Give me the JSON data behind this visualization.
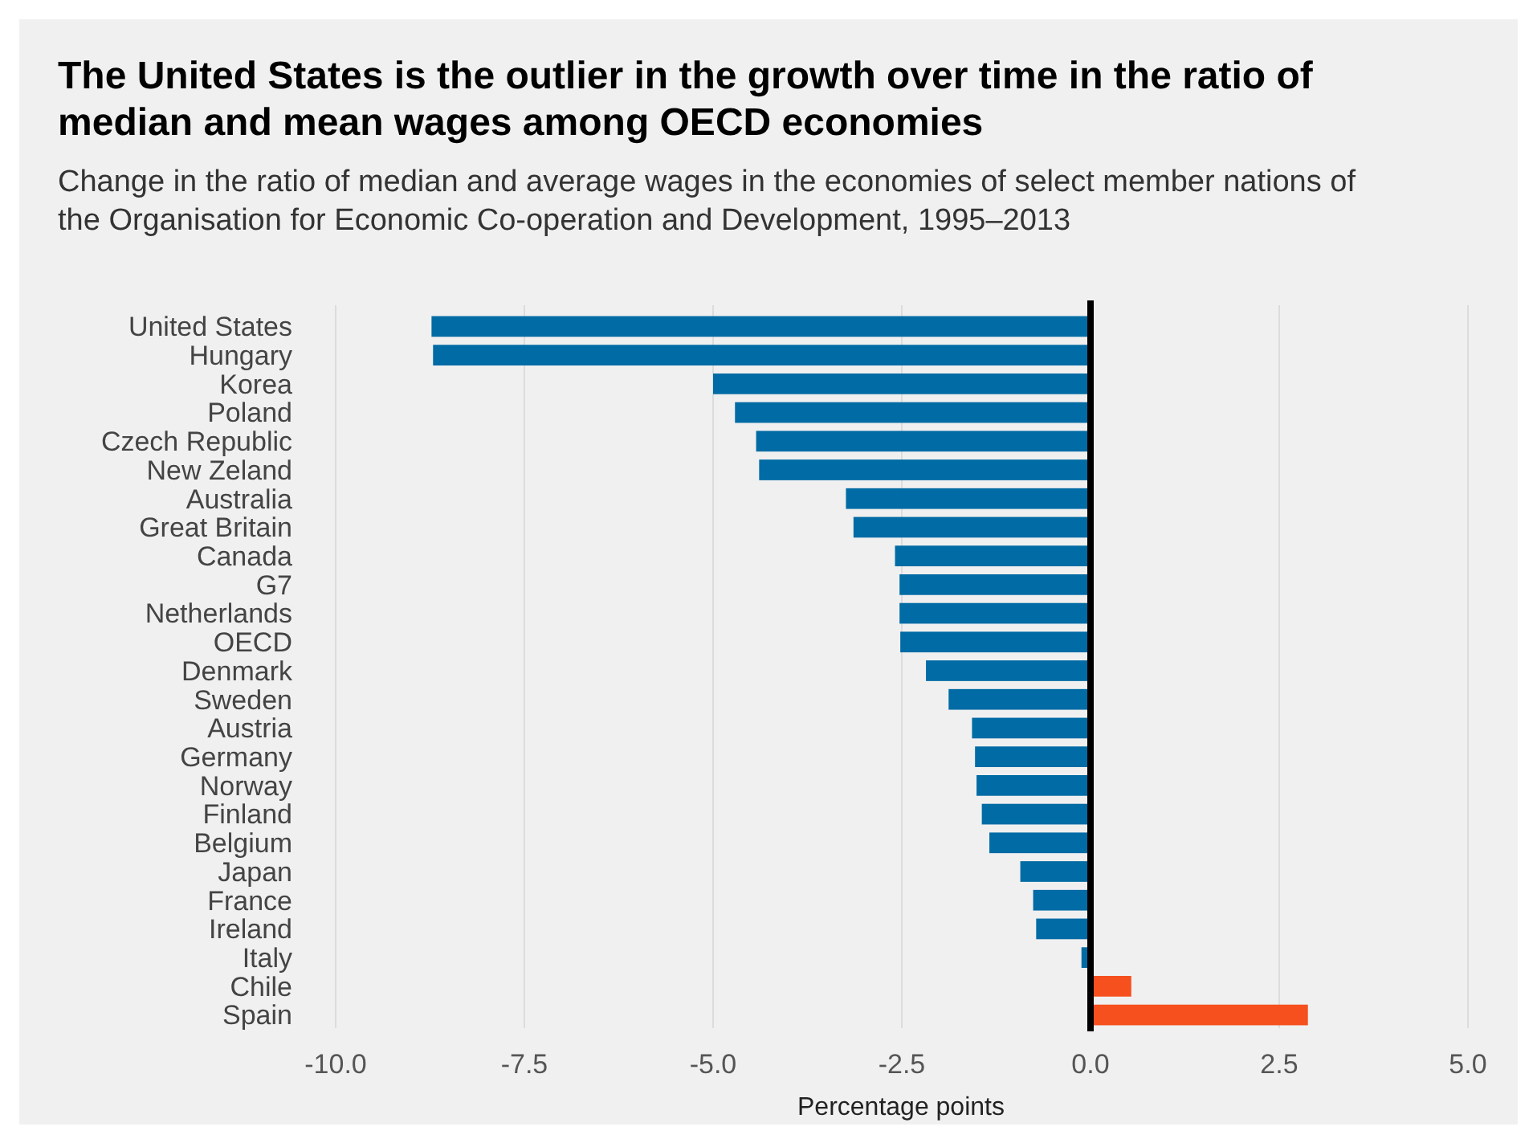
{
  "chart_data": {
    "type": "bar",
    "orientation": "horizontal",
    "title": "The United States is the outlier in the growth over time in the ratio of median and mean wages among OECD economies",
    "subtitle": "Change in the ratio of median and average wages in the economies of select member nations of the Organisation for Economic Co-operation and Development, 1995–2013",
    "xlabel": "Percentage points",
    "categories": [
      "United States",
      "Hungary",
      "Korea",
      "Poland",
      "Czech Republic",
      "New Zeland",
      "Australia",
      "Great Britain",
      "Canada",
      "G7",
      "Netherlands",
      "OECD",
      "Denmark",
      "Sweden",
      "Austria",
      "Germany",
      "Norway",
      "Finland",
      "Belgium",
      "Japan",
      "France",
      "Ireland",
      "Italy",
      "Chile",
      "Spain"
    ],
    "values": [
      -8.73,
      -8.71,
      -5.0,
      -4.71,
      -4.43,
      -4.39,
      -3.24,
      -3.14,
      -2.59,
      -2.53,
      -2.53,
      -2.52,
      -2.18,
      -1.88,
      -1.57,
      -1.53,
      -1.51,
      -1.44,
      -1.34,
      -0.93,
      -0.76,
      -0.72,
      -0.12,
      0.54,
      2.88
    ],
    "colors": [
      "#006ba4",
      "#006ba4",
      "#006ba4",
      "#006ba4",
      "#006ba4",
      "#006ba4",
      "#006ba4",
      "#006ba4",
      "#006ba4",
      "#006ba4",
      "#006ba4",
      "#006ba4",
      "#006ba4",
      "#006ba4",
      "#006ba4",
      "#006ba4",
      "#006ba4",
      "#006ba4",
      "#006ba4",
      "#006ba4",
      "#006ba4",
      "#006ba4",
      "#006ba4",
      "#f5501e",
      "#f5501e"
    ],
    "xlim": [
      -10,
      5
    ],
    "xticks": [
      {
        "value": -10,
        "label": "-10.0"
      },
      {
        "value": -7.5,
        "label": "-7.5"
      },
      {
        "value": -5,
        "label": "-5.0"
      },
      {
        "value": -2.5,
        "label": "-2.5"
      },
      {
        "value": 0,
        "label": "0.0"
      },
      {
        "value": 2.5,
        "label": "2.5"
      },
      {
        "value": 5,
        "label": "5.0"
      }
    ],
    "grid": "x",
    "ref_lines": [
      {
        "axis": "x",
        "value": 0,
        "color": "#000000"
      }
    ]
  }
}
